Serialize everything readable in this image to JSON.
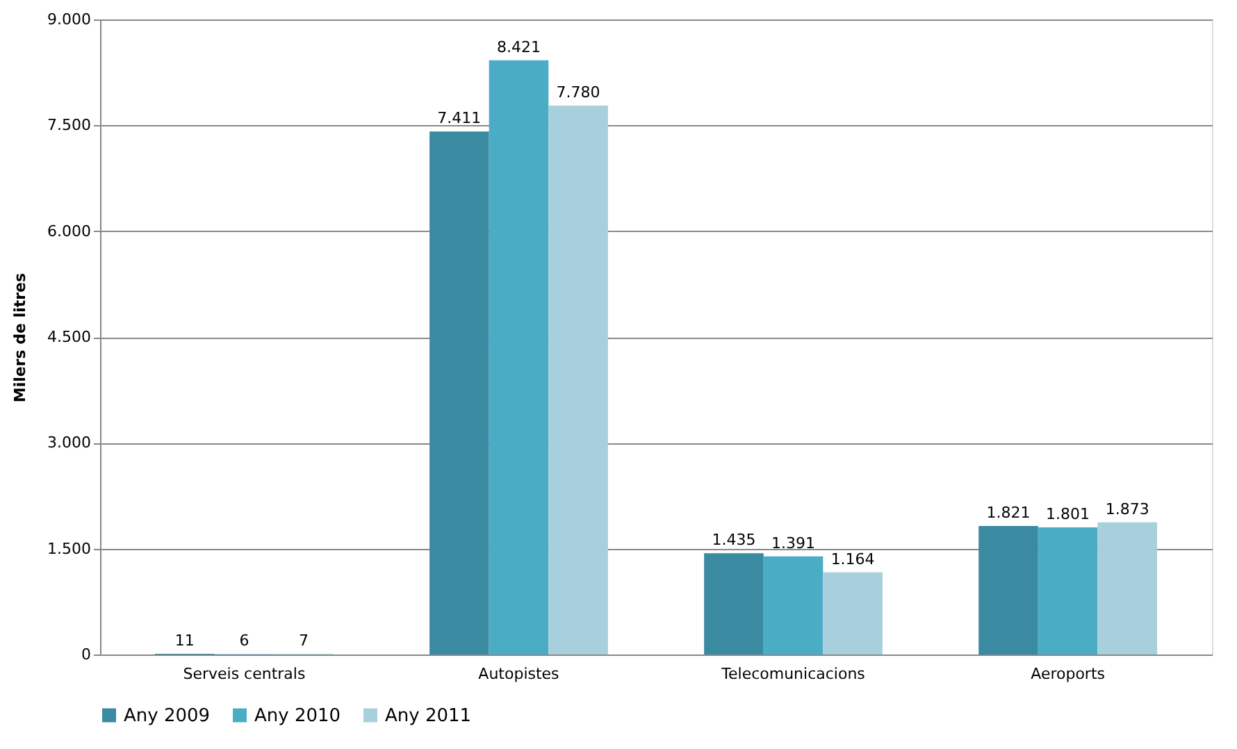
{
  "chart_data": {
    "type": "bar",
    "ylabel": "Milers de litres",
    "categories": [
      "Serveis centrals",
      "Autopistes",
      "Telecomunicacions",
      "Aeroports"
    ],
    "series": [
      {
        "name": "Any 2009",
        "color": "#3a8aa2",
        "values": [
          11,
          7411,
          1435,
          1821
        ],
        "value_labels": [
          "11",
          "7.411",
          "1.435",
          "1.821"
        ]
      },
      {
        "name": "Any 2010",
        "color": "#4bacc6",
        "values": [
          6,
          8421,
          1391,
          1801
        ],
        "value_labels": [
          "6",
          "8.421",
          "1.391",
          "1.801"
        ]
      },
      {
        "name": "Any 2011",
        "color": "#a8cfdc",
        "values": [
          7,
          7780,
          1164,
          1873
        ],
        "value_labels": [
          "7",
          "7.780",
          "1.164",
          "1.873"
        ]
      }
    ],
    "ylim": [
      0,
      9000
    ],
    "yticks": [
      0,
      {
        "value": 1500,
        "label": "1.500"
      },
      {
        "value": 3000,
        "label": "3.000"
      },
      {
        "value": 4500,
        "label": "4.500"
      },
      {
        "value": 6000,
        "label": "6.000"
      },
      {
        "value": 7500,
        "label": "7.500"
      },
      {
        "value": 9000,
        "label": "9.000"
      }
    ],
    "grid": "y",
    "legend": "bottom"
  }
}
